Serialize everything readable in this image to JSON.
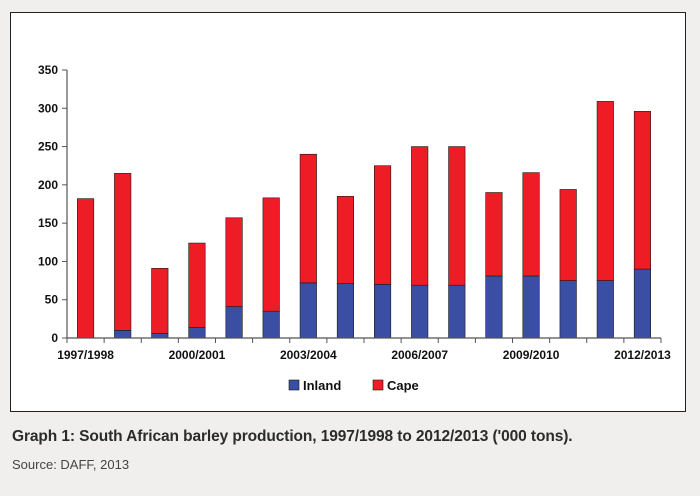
{
  "caption": "Graph 1: South African barley production, 1997/1998 to 2012/2013 ('000 tons).",
  "source": "Source: DAFF, 2013",
  "chart_data": {
    "type": "bar",
    "stacked": true,
    "categories": [
      "1997/1998",
      "1998/1999",
      "1999/2000",
      "2000/2001",
      "2001/2002",
      "2002/2003",
      "2003/2004",
      "2004/2005",
      "2005/2006",
      "2006/2007",
      "2007/2008",
      "2008/2009",
      "2009/2010",
      "2010/2011",
      "2011/2012",
      "2012/2013"
    ],
    "visible_x_tick_labels": [
      "1997/1998",
      "2000/2001",
      "2003/2004",
      "2006/2007",
      "2009/2010",
      "2012/2013"
    ],
    "series": [
      {
        "name": "Inland",
        "color": "#3a4fa3",
        "values": [
          0,
          10,
          6,
          14,
          41,
          35,
          72,
          71,
          70,
          69,
          69,
          81,
          81,
          75,
          75,
          90
        ]
      },
      {
        "name": "Cape",
        "color": "#ee1c24",
        "values": [
          182,
          205,
          85,
          110,
          116,
          148,
          168,
          114,
          155,
          181,
          181,
          109,
          135,
          119,
          234,
          206
        ]
      }
    ],
    "y_ticks": [
      0,
      50,
      100,
      150,
      200,
      250,
      300,
      350
    ],
    "ylim": [
      0,
      350
    ],
    "grid": false,
    "legend_position": "bottom-center"
  }
}
